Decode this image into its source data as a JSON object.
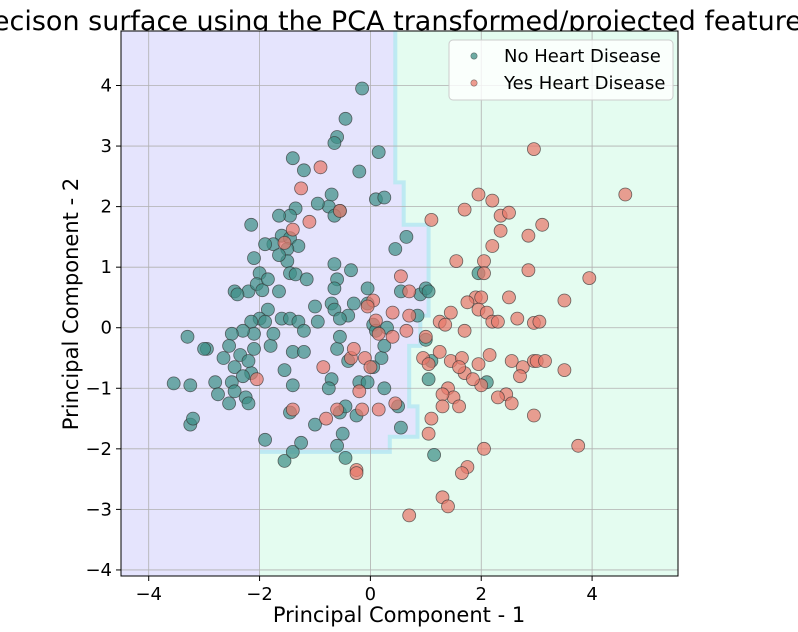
{
  "chart_data": {
    "type": "scatter",
    "title": "Decison surface using the PCA transformed/projected features",
    "xlabel": "Principal Component - 1",
    "ylabel": "Principal Component - 2",
    "xlim": [
      -4.5,
      5.55
    ],
    "ylim": [
      -4.1,
      4.9
    ],
    "xticks": [
      -4,
      -2,
      0,
      2,
      4
    ],
    "yticks": [
      -4,
      -3,
      -2,
      -1,
      0,
      1,
      2,
      3,
      4
    ],
    "grid": true,
    "legend_position": "top-right",
    "colors": {
      "no_point": "#3f8f86",
      "yes_point": "#e8796b",
      "no_region": "#e5e4fd",
      "yes_region": "#e4fcf0",
      "boundary": "#b8e8f2"
    },
    "decision_regions": {
      "no_heart_disease_region": [
        [
          -4.5,
          4.9
        ],
        [
          0.45,
          4.9
        ],
        [
          0.45,
          2.4
        ],
        [
          0.6,
          2.4
        ],
        [
          0.6,
          1.7
        ],
        [
          1.05,
          1.7
        ],
        [
          1.05,
          0.2
        ],
        [
          0.9,
          0.2
        ],
        [
          0.9,
          -0.3
        ],
        [
          0.7,
          -0.3
        ],
        [
          0.7,
          -1.3
        ],
        [
          0.85,
          -1.3
        ],
        [
          0.85,
          -1.8
        ],
        [
          0.35,
          -1.8
        ],
        [
          0.35,
          -2.05
        ],
        [
          -2,
          -2.05
        ],
        [
          -2,
          -4.1
        ],
        [
          -4.5,
          -4.1
        ]
      ],
      "yes_heart_disease_region": [
        [
          0.45,
          4.9
        ],
        [
          5.55,
          4.9
        ],
        [
          5.55,
          -4.1
        ],
        [
          -2,
          -4.1
        ],
        [
          -2,
          -2.05
        ],
        [
          0.35,
          -2.05
        ],
        [
          0.35,
          -1.8
        ],
        [
          0.85,
          -1.8
        ],
        [
          0.85,
          -1.3
        ],
        [
          0.7,
          -1.3
        ],
        [
          0.7,
          -0.3
        ],
        [
          0.9,
          -0.3
        ],
        [
          0.9,
          0.2
        ],
        [
          1.05,
          0.2
        ],
        [
          1.05,
          1.7
        ],
        [
          0.6,
          1.7
        ],
        [
          0.6,
          2.4
        ],
        [
          0.45,
          2.4
        ]
      ]
    },
    "series": [
      {
        "name": "No Heart Disease",
        "color": "#3f8f86",
        "points": [
          [
            -0.15,
            3.95
          ],
          [
            -0.45,
            3.45
          ],
          [
            -0.6,
            3.15
          ],
          [
            -0.65,
            3.05
          ],
          [
            0.15,
            2.9
          ],
          [
            -0.2,
            2.58
          ],
          [
            -1.4,
            2.8
          ],
          [
            -1.2,
            2.6
          ],
          [
            -0.7,
            2.2
          ],
          [
            -0.75,
            2.0
          ],
          [
            -0.95,
            2.05
          ],
          [
            -0.55,
            1.93
          ],
          [
            -0.65,
            1.85
          ],
          [
            0.1,
            2.12
          ],
          [
            0.25,
            2.15
          ],
          [
            -1.35,
            1.97
          ],
          [
            -1.45,
            1.85
          ],
          [
            -2.15,
            1.7
          ],
          [
            -1.65,
            1.85
          ],
          [
            -1.6,
            1.52
          ],
          [
            -1.45,
            1.48
          ],
          [
            -1.3,
            1.35
          ],
          [
            -1.5,
            1.3
          ],
          [
            -1.75,
            1.38
          ],
          [
            -1.5,
            1.1
          ],
          [
            -1.65,
            1.2
          ],
          [
            -1.9,
            1.38
          ],
          [
            -2.1,
            1.15
          ],
          [
            -2.0,
            0.9
          ],
          [
            -2.2,
            0.6
          ],
          [
            -2.45,
            0.6
          ],
          [
            -2.4,
            0.55
          ],
          [
            -2.05,
            0.72
          ],
          [
            -1.95,
            0.62
          ],
          [
            -1.45,
            0.9
          ],
          [
            -1.85,
            0.8
          ],
          [
            -1.35,
            0.88
          ],
          [
            -1.15,
            0.8
          ],
          [
            -0.65,
            1.05
          ],
          [
            -0.6,
            0.8
          ],
          [
            -0.35,
            0.95
          ],
          [
            -0.65,
            0.65
          ],
          [
            -0.7,
            0.4
          ],
          [
            -0.3,
            0.4
          ],
          [
            -0.4,
            0.2
          ],
          [
            -0.65,
            0.3
          ],
          [
            -0.55,
            0.15
          ],
          [
            -0.05,
            0.65
          ],
          [
            -0.05,
            0.4
          ],
          [
            -1.65,
            0.6
          ],
          [
            -1.85,
            0.3
          ],
          [
            -2.0,
            0.15
          ],
          [
            -2.15,
            0.1
          ],
          [
            -2.1,
            -0.1
          ],
          [
            -1.9,
            0.1
          ],
          [
            -1.6,
            0.15
          ],
          [
            -1.45,
            0.15
          ],
          [
            -1.3,
            0.1
          ],
          [
            -1.0,
            0.35
          ],
          [
            -0.95,
            0.1
          ],
          [
            -1.2,
            -0.05
          ],
          [
            -1.4,
            -0.4
          ],
          [
            -1.2,
            -0.4
          ],
          [
            -1.55,
            -0.7
          ],
          [
            -1.4,
            -0.95
          ],
          [
            -1.8,
            -0.3
          ],
          [
            -1.75,
            -0.1
          ],
          [
            -2.3,
            -0.05
          ],
          [
            -2.5,
            -0.1
          ],
          [
            -2.55,
            -0.3
          ],
          [
            -2.65,
            -0.5
          ],
          [
            -2.35,
            -0.45
          ],
          [
            -2.45,
            -0.65
          ],
          [
            -2.15,
            -0.75
          ],
          [
            -2.3,
            -0.8
          ],
          [
            -2.2,
            -0.55
          ],
          [
            -2.1,
            -0.35
          ],
          [
            -2.95,
            -0.35
          ],
          [
            -3.0,
            -0.35
          ],
          [
            -3.3,
            -0.15
          ],
          [
            -2.8,
            -0.9
          ],
          [
            -2.75,
            -1.1
          ],
          [
            -3.25,
            -0.95
          ],
          [
            -3.55,
            -0.92
          ],
          [
            -3.25,
            -1.6
          ],
          [
            -3.2,
            -1.5
          ],
          [
            -2.5,
            -0.9
          ],
          [
            -2.45,
            -1.05
          ],
          [
            -2.25,
            -1.15
          ],
          [
            -2.2,
            -1.25
          ],
          [
            -2.55,
            -1.25
          ],
          [
            -1.45,
            -1.4
          ],
          [
            -1.9,
            -1.85
          ],
          [
            -1.55,
            -2.2
          ],
          [
            -1.4,
            -2.05
          ],
          [
            -1.25,
            -1.9
          ],
          [
            -1.0,
            -1.6
          ],
          [
            -0.6,
            -1.95
          ],
          [
            -0.5,
            -1.75
          ],
          [
            -0.55,
            -1.4
          ],
          [
            -0.25,
            -1.45
          ],
          [
            -0.2,
            -0.9
          ],
          [
            -0.05,
            -0.9
          ],
          [
            0.25,
            -1.0
          ],
          [
            0.05,
            -0.65
          ],
          [
            0.2,
            -0.5
          ],
          [
            0.25,
            -0.3
          ],
          [
            0.05,
            0.05
          ],
          [
            0.1,
            -0.05
          ],
          [
            0.3,
            0.0
          ],
          [
            -0.4,
            -0.55
          ],
          [
            -0.6,
            -0.35
          ],
          [
            -0.55,
            -0.15
          ],
          [
            -0.7,
            -0.85
          ],
          [
            -0.75,
            -1.0
          ],
          [
            -0.45,
            -2.15
          ],
          [
            -0.45,
            -1.3
          ],
          [
            0.5,
            -1.3
          ],
          [
            0.55,
            -1.65
          ],
          [
            0.45,
            1.3
          ],
          [
            0.65,
            1.5
          ],
          [
            0.55,
            0.6
          ],
          [
            0.85,
            0.2
          ],
          [
            0.9,
            0.55
          ],
          [
            1.0,
            0.65
          ],
          [
            1.05,
            0.6
          ],
          [
            1.0,
            -0.2
          ],
          [
            1.05,
            -0.85
          ],
          [
            1.1,
            -0.55
          ],
          [
            1.15,
            -2.1
          ],
          [
            1.95,
            0.9
          ],
          [
            2.1,
            -0.9
          ]
        ]
      },
      {
        "name": "Yes Heart Disease",
        "color": "#e8796b",
        "points": [
          [
            2.95,
            2.95
          ],
          [
            4.6,
            2.2
          ],
          [
            1.95,
            2.2
          ],
          [
            2.2,
            2.1
          ],
          [
            1.7,
            1.95
          ],
          [
            2.35,
            1.85
          ],
          [
            2.5,
            1.9
          ],
          [
            2.35,
            1.6
          ],
          [
            2.2,
            1.35
          ],
          [
            2.05,
            1.1
          ],
          [
            3.1,
            1.7
          ],
          [
            2.85,
            1.52
          ],
          [
            1.55,
            1.1
          ],
          [
            1.1,
            1.78
          ],
          [
            2.85,
            0.95
          ],
          [
            3.95,
            0.82
          ],
          [
            3.5,
            0.45
          ],
          [
            2.5,
            0.5
          ],
          [
            2.05,
            0.9
          ],
          [
            1.9,
            0.5
          ],
          [
            2.0,
            0.5
          ],
          [
            1.75,
            0.42
          ],
          [
            1.95,
            0.3
          ],
          [
            2.1,
            0.25
          ],
          [
            2.2,
            0.1
          ],
          [
            2.3,
            0.1
          ],
          [
            2.65,
            0.15
          ],
          [
            2.95,
            0.08
          ],
          [
            3.05,
            0.1
          ],
          [
            1.45,
            0.25
          ],
          [
            1.7,
            -0.05
          ],
          [
            1.25,
            0.1
          ],
          [
            1.35,
            0.05
          ],
          [
            0.55,
            0.85
          ],
          [
            0.7,
            0.6
          ],
          [
            0.7,
            0.2
          ],
          [
            0.4,
            0.25
          ],
          [
            0.65,
            -0.05
          ],
          [
            0.4,
            -0.15
          ],
          [
            0.15,
            -0.1
          ],
          [
            0.1,
            0.12
          ],
          [
            0.05,
            0.45
          ],
          [
            1.0,
            -0.15
          ],
          [
            0.95,
            -0.5
          ],
          [
            1.05,
            -0.6
          ],
          [
            1.25,
            -0.4
          ],
          [
            1.45,
            -0.55
          ],
          [
            1.65,
            -0.5
          ],
          [
            1.95,
            -0.6
          ],
          [
            2.15,
            -0.45
          ],
          [
            2.55,
            -0.55
          ],
          [
            2.75,
            -0.65
          ],
          [
            2.95,
            -0.55
          ],
          [
            3.0,
            -0.55
          ],
          [
            3.15,
            -0.55
          ],
          [
            3.5,
            -0.7
          ],
          [
            2.7,
            -0.8
          ],
          [
            2.45,
            -1.1
          ],
          [
            2.3,
            -1.15
          ],
          [
            2.55,
            -1.25
          ],
          [
            2.95,
            -1.45
          ],
          [
            2.0,
            -0.95
          ],
          [
            1.7,
            -0.75
          ],
          [
            1.6,
            -0.65
          ],
          [
            1.85,
            -0.85
          ],
          [
            1.4,
            -1.0
          ],
          [
            1.5,
            -1.15
          ],
          [
            1.3,
            -1.1
          ],
          [
            1.3,
            -1.3
          ],
          [
            1.6,
            -1.3
          ],
          [
            1.1,
            -1.5
          ],
          [
            1.05,
            -1.75
          ],
          [
            3.75,
            -1.95
          ],
          [
            2.05,
            -2.0
          ],
          [
            1.75,
            -2.3
          ],
          [
            1.65,
            -2.4
          ],
          [
            1.3,
            -2.8
          ],
          [
            1.4,
            -2.95
          ],
          [
            0.7,
            -3.1
          ],
          [
            -0.25,
            -2.35
          ],
          [
            -0.25,
            -2.4
          ],
          [
            -0.35,
            -0.5
          ],
          [
            -0.3,
            -0.35
          ],
          [
            -0.1,
            -0.5
          ],
          [
            0.0,
            -0.65
          ],
          [
            -0.2,
            -1.05
          ],
          [
            -0.15,
            -1.35
          ],
          [
            0.15,
            -1.35
          ],
          [
            0.45,
            -1.25
          ],
          [
            -0.85,
            -0.65
          ],
          [
            -0.6,
            -1.35
          ],
          [
            -0.8,
            -1.5
          ],
          [
            -2.05,
            -0.85
          ],
          [
            -1.25,
            2.3
          ],
          [
            -0.9,
            2.65
          ],
          [
            -0.55,
            1.93
          ],
          [
            -1.1,
            1.75
          ],
          [
            -1.4,
            1.62
          ],
          [
            -1.55,
            1.4
          ],
          [
            -1.4,
            -1.35
          ],
          [
            -0.05,
            0.35
          ]
        ]
      }
    ]
  }
}
